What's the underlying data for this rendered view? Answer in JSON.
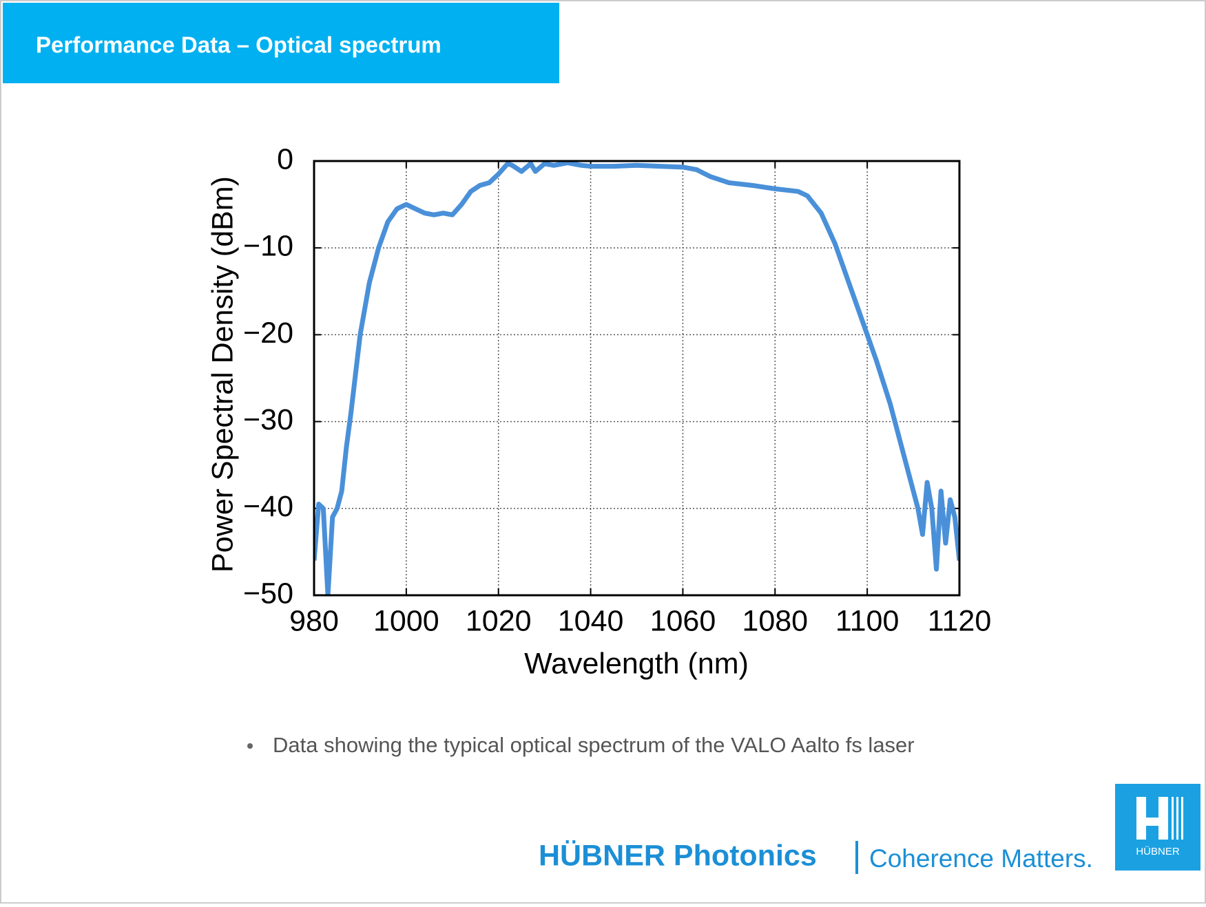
{
  "header": {
    "title": "Performance Data – Optical spectrum"
  },
  "chart_data": {
    "type": "line",
    "x_label": "Wavelength (nm)",
    "y_label": "Power Spectral Density (dBm)",
    "x": [
      980,
      981,
      982,
      983,
      984,
      985,
      986,
      987,
      988,
      990,
      992,
      994,
      996,
      998,
      1000,
      1002,
      1004,
      1006,
      1008,
      1010,
      1012,
      1014,
      1016,
      1018,
      1020,
      1022,
      1023,
      1025,
      1027,
      1028,
      1030,
      1032,
      1035,
      1038,
      1040,
      1045,
      1050,
      1055,
      1060,
      1063,
      1066,
      1070,
      1075,
      1080,
      1085,
      1087,
      1090,
      1093,
      1096,
      1099,
      1102,
      1105,
      1107,
      1109,
      1110,
      1111,
      1112,
      1113,
      1114,
      1115,
      1116,
      1117,
      1118,
      1119,
      1120
    ],
    "series": [
      {
        "color": "#4a90d9",
        "values": [
          -46,
          -39.5,
          -40,
          -50,
          -41,
          -40,
          -38,
          -33,
          -29,
          -20,
          -14,
          -10,
          -7,
          -5.5,
          -5,
          -5.5,
          -6,
          -6.2,
          -6,
          -6.2,
          -5,
          -3.5,
          -2.8,
          -2.5,
          -1.5,
          -0.3,
          -0.5,
          -1.2,
          -0.3,
          -1.2,
          -0.3,
          -0.5,
          -0.2,
          -0.5,
          -0.6,
          -0.6,
          -0.5,
          -0.6,
          -0.7,
          -1,
          -1.8,
          -2.5,
          -2.8,
          -3.2,
          -3.5,
          -4,
          -6,
          -9.5,
          -14,
          -18.5,
          -23,
          -28,
          -32,
          -36,
          -38,
          -40,
          -43,
          -37,
          -40,
          -47,
          -38,
          -44,
          -39,
          -41,
          -46
        ]
      }
    ],
    "xlim": [
      980,
      1120
    ],
    "ylim": [
      -50,
      0
    ],
    "xticks": [
      980,
      1000,
      1020,
      1040,
      1060,
      1080,
      1100,
      1120
    ],
    "yticks": [
      0,
      {
        "value": -10,
        "label": "−10"
      },
      {
        "value": -20,
        "label": "−20"
      },
      {
        "value": -30,
        "label": "−30"
      },
      {
        "value": -40,
        "label": "−40"
      },
      {
        "value": -50,
        "label": "−50"
      }
    ],
    "grid": true
  },
  "bullet": "Data showing the typical optical spectrum of the VALO Aalto fs laser",
  "footer": {
    "brand": "HÜBNER Photonics",
    "slogan": "Coherence Matters.",
    "logo_text": "HÜBNER"
  }
}
